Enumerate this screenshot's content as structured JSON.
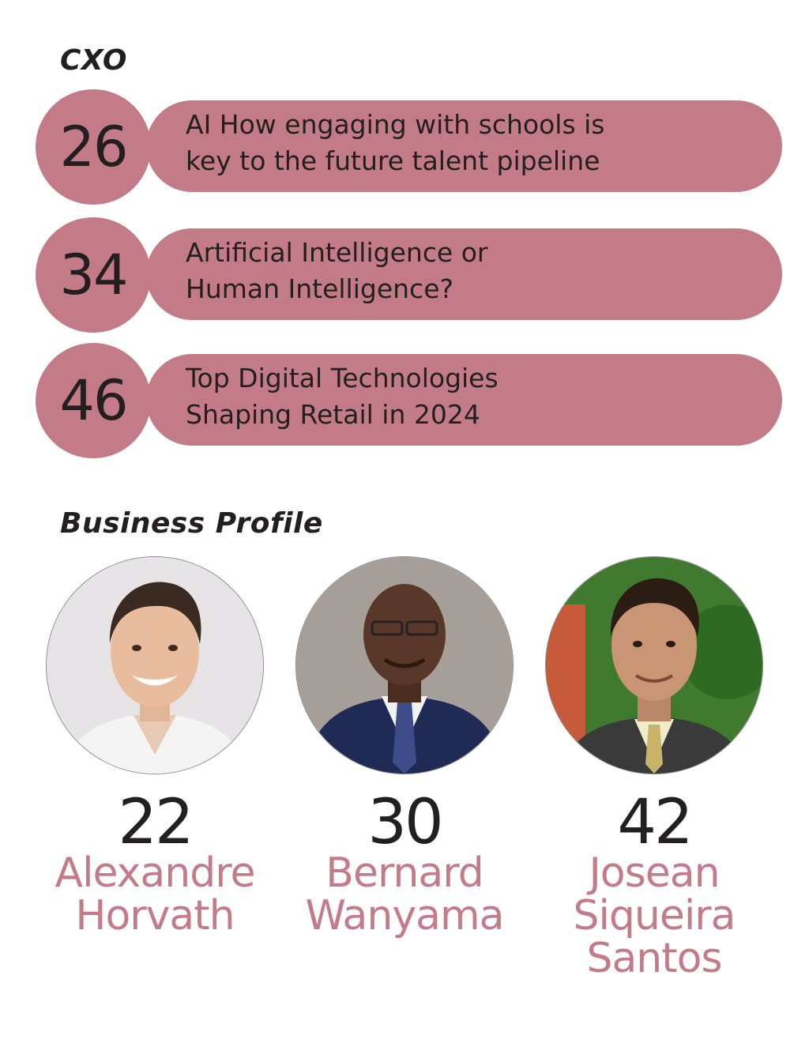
{
  "cxo": {
    "heading": "CXO",
    "items": [
      {
        "page": "26",
        "lines": [
          "AI  How engaging with schools is",
          "key to the future talent pipeline"
        ]
      },
      {
        "page": "34",
        "lines": [
          "Artificial Intelligence or",
          "Human Intelligence?"
        ]
      },
      {
        "page": "46",
        "lines": [
          "Top Digital Technologies",
          "Shaping Retail in 2024"
        ]
      }
    ]
  },
  "business_profile": {
    "heading": "Business Profile",
    "profiles": [
      {
        "page": "22",
        "name_lines": [
          "Alexandre",
          "Horvath"
        ]
      },
      {
        "page": "30",
        "name_lines": [
          "Bernard",
          "Wanyama"
        ]
      },
      {
        "page": "42",
        "name_lines": [
          "Josean",
          "Siqueira",
          "Santos"
        ]
      }
    ]
  },
  "colors": {
    "accent": "#c37b87",
    "text": "#231f20"
  }
}
